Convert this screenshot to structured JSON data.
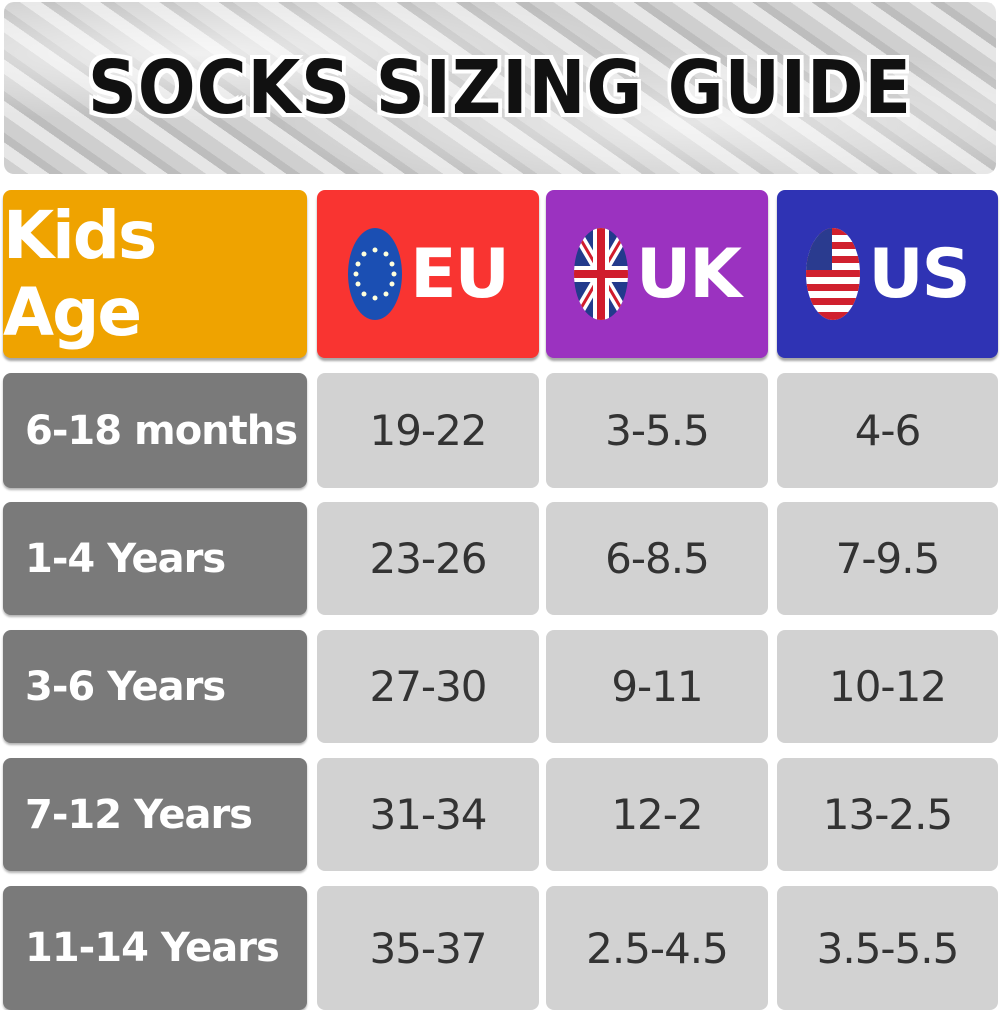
{
  "title": "SOCKS SIZING GUIDE",
  "headers": [
    {
      "label": "Kids Age",
      "color": "#efa300"
    },
    {
      "label": "EU",
      "color": "#f93431",
      "icon": "eu-flag-icon"
    },
    {
      "label": "UK",
      "color": "#9b32c0",
      "icon": "uk-flag-icon"
    },
    {
      "label": "US",
      "color": "#2f33b4",
      "icon": "us-flag-icon"
    }
  ],
  "rows": [
    {
      "age": "6-18 months",
      "eu": "19-22",
      "uk": "3-5.5",
      "us": "4-6"
    },
    {
      "age": "1-4 Years",
      "eu": "23-26",
      "uk": "6-8.5",
      "us": "7-9.5"
    },
    {
      "age": "3-6 Years",
      "eu": "27-30",
      "uk": "9-11",
      "us": "10-12"
    },
    {
      "age": "7-12 Years",
      "eu": "31-34",
      "uk": "12-2",
      "us": "13-2.5"
    },
    {
      "age": "11-14 Years",
      "eu": "35-37",
      "uk": "2.5-4.5",
      "us": "3.5-5.5"
    }
  ]
}
